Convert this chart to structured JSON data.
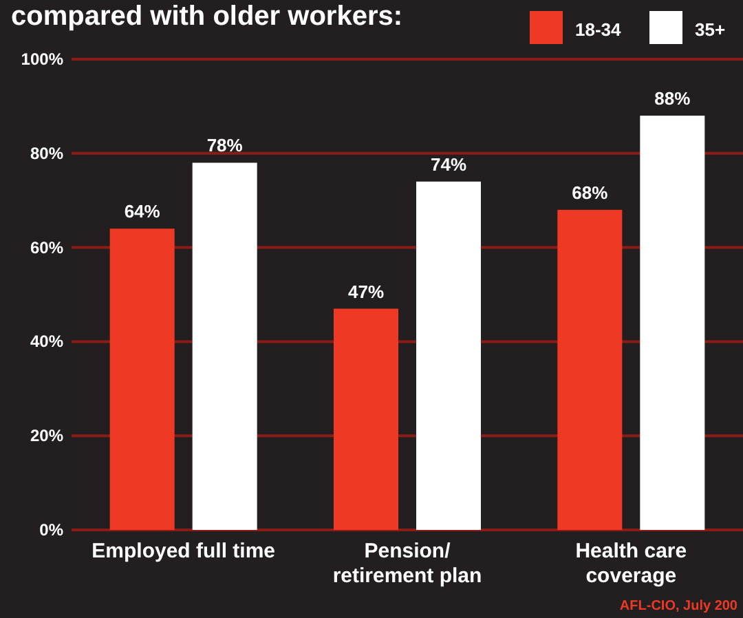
{
  "chart_data": {
    "type": "bar",
    "title": "compared with older workers:",
    "categories": [
      "Employed full time",
      "Pension/\nretirement plan",
      "Health care\ncoverage"
    ],
    "series": [
      {
        "name": "18-34",
        "color": "#ee3a24",
        "values": [
          64,
          47,
          68
        ]
      },
      {
        "name": "35+",
        "color": "#ffffff",
        "values": [
          78,
          74,
          88
        ]
      }
    ],
    "ylim": [
      0,
      100
    ],
    "yticks": [
      {
        "value": 0,
        "label": "0%"
      },
      {
        "value": 20,
        "label": "20%"
      },
      {
        "value": 40,
        "label": "40%"
      },
      {
        "value": 60,
        "label": "60%"
      },
      {
        "value": 80,
        "label": "80%"
      },
      {
        "value": 100,
        "label": "100%"
      }
    ],
    "grid": "y",
    "legend": "top right",
    "value_labels": [
      [
        "64%",
        "47%",
        "68%"
      ],
      [
        "78%",
        "74%",
        "88%"
      ]
    ],
    "annotations": [
      "AFL-CIO, July 200"
    ]
  }
}
